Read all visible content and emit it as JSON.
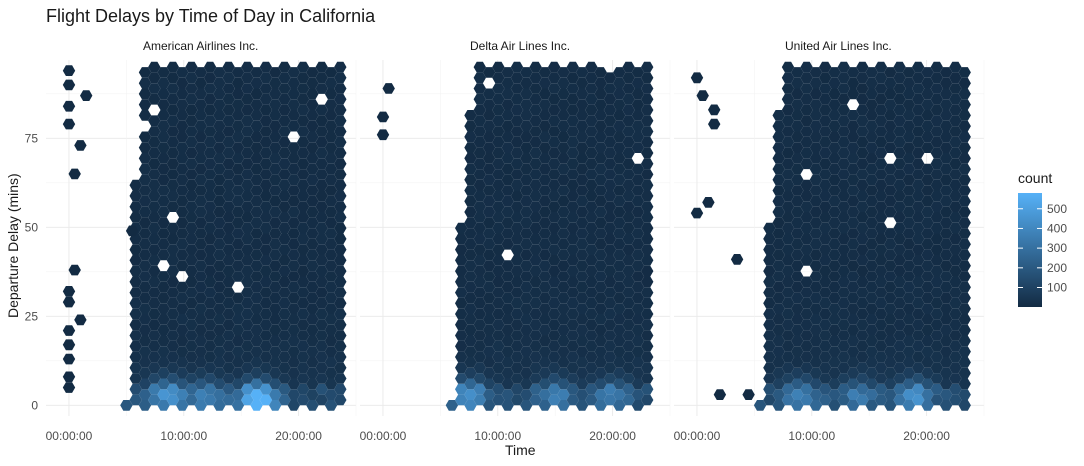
{
  "chart_data": {
    "type": "hexbin",
    "title": "Flight Delays by Time of Day in California",
    "xlabel": "Time",
    "ylabel": "Departure Delay (mins)",
    "x_ticks": [
      "00:00:00",
      "10:00:00",
      "20:00:00"
    ],
    "y_ticks": [
      "0",
      "25",
      "50",
      "75"
    ],
    "xlim_hours": [
      -2,
      25
    ],
    "ylim": [
      -3,
      97
    ],
    "grid": true,
    "legend": {
      "title": "count",
      "position": "right",
      "ticks": [
        "100",
        "200",
        "300",
        "400",
        "500"
      ],
      "range": [
        1,
        580
      ],
      "low_color": "#132B43",
      "high_color": "#56B1F7"
    },
    "facets": [
      {
        "name": "American Airlines Inc.",
        "active_hours": [
          5.0,
          24.0
        ],
        "full_from_hour": 6.5,
        "dense_to_hour": 24.0,
        "peaks": [
          {
            "hour": 16.5,
            "delay": 2,
            "count": 560
          },
          {
            "hour": 8.5,
            "delay": 3,
            "count": 330
          },
          {
            "hour": 12,
            "delay": 3,
            "count": 250
          }
        ],
        "early_points": [
          {
            "hour": 0,
            "delay": 94
          },
          {
            "hour": 0,
            "delay": 90
          },
          {
            "hour": 1.5,
            "delay": 87
          },
          {
            "hour": 0,
            "delay": 84
          },
          {
            "hour": 0,
            "delay": 79
          },
          {
            "hour": 1,
            "delay": 73
          },
          {
            "hour": 0.5,
            "delay": 65
          },
          {
            "hour": 0.5,
            "delay": 38
          },
          {
            "hour": 0,
            "delay": 32
          },
          {
            "hour": 0,
            "delay": 29
          },
          {
            "hour": 1,
            "delay": 24
          },
          {
            "hour": 0,
            "delay": 21
          },
          {
            "hour": 0,
            "delay": 17
          },
          {
            "hour": 0,
            "delay": 13
          },
          {
            "hour": 0,
            "delay": 8
          },
          {
            "hour": 0,
            "delay": 5
          },
          {
            "hour": 5.5,
            "delay": 49
          }
        ]
      },
      {
        "name": "Delta Air Lines Inc.",
        "active_hours": [
          6.0,
          23.5
        ],
        "full_from_hour": 8.0,
        "dense_to_hour": 23.0,
        "peaks": [
          {
            "hour": 7.5,
            "delay": 3,
            "count": 330
          },
          {
            "hour": 15,
            "delay": 3,
            "count": 240
          },
          {
            "hour": 20,
            "delay": 3,
            "count": 220
          }
        ],
        "early_points": [
          {
            "hour": 0.5,
            "delay": 89
          },
          {
            "hour": 0,
            "delay": 81
          },
          {
            "hour": 0,
            "delay": 76
          }
        ]
      },
      {
        "name": "United Air Lines Inc.",
        "active_hours": [
          5.5,
          23.5
        ],
        "full_from_hour": 7.5,
        "dense_to_hour": 23.0,
        "peaks": [
          {
            "hour": 19,
            "delay": 3,
            "count": 300
          },
          {
            "hour": 9,
            "delay": 3,
            "count": 260
          },
          {
            "hour": 14,
            "delay": 3,
            "count": 220
          }
        ],
        "early_points": [
          {
            "hour": 0,
            "delay": 92
          },
          {
            "hour": 0.5,
            "delay": 87
          },
          {
            "hour": 1.5,
            "delay": 83
          },
          {
            "hour": 1.5,
            "delay": 79
          },
          {
            "hour": 1,
            "delay": 57
          },
          {
            "hour": 0,
            "delay": 54
          },
          {
            "hour": 3.5,
            "delay": 41
          },
          {
            "hour": 2,
            "delay": 3
          },
          {
            "hour": 4.5,
            "delay": 3
          }
        ]
      }
    ]
  }
}
